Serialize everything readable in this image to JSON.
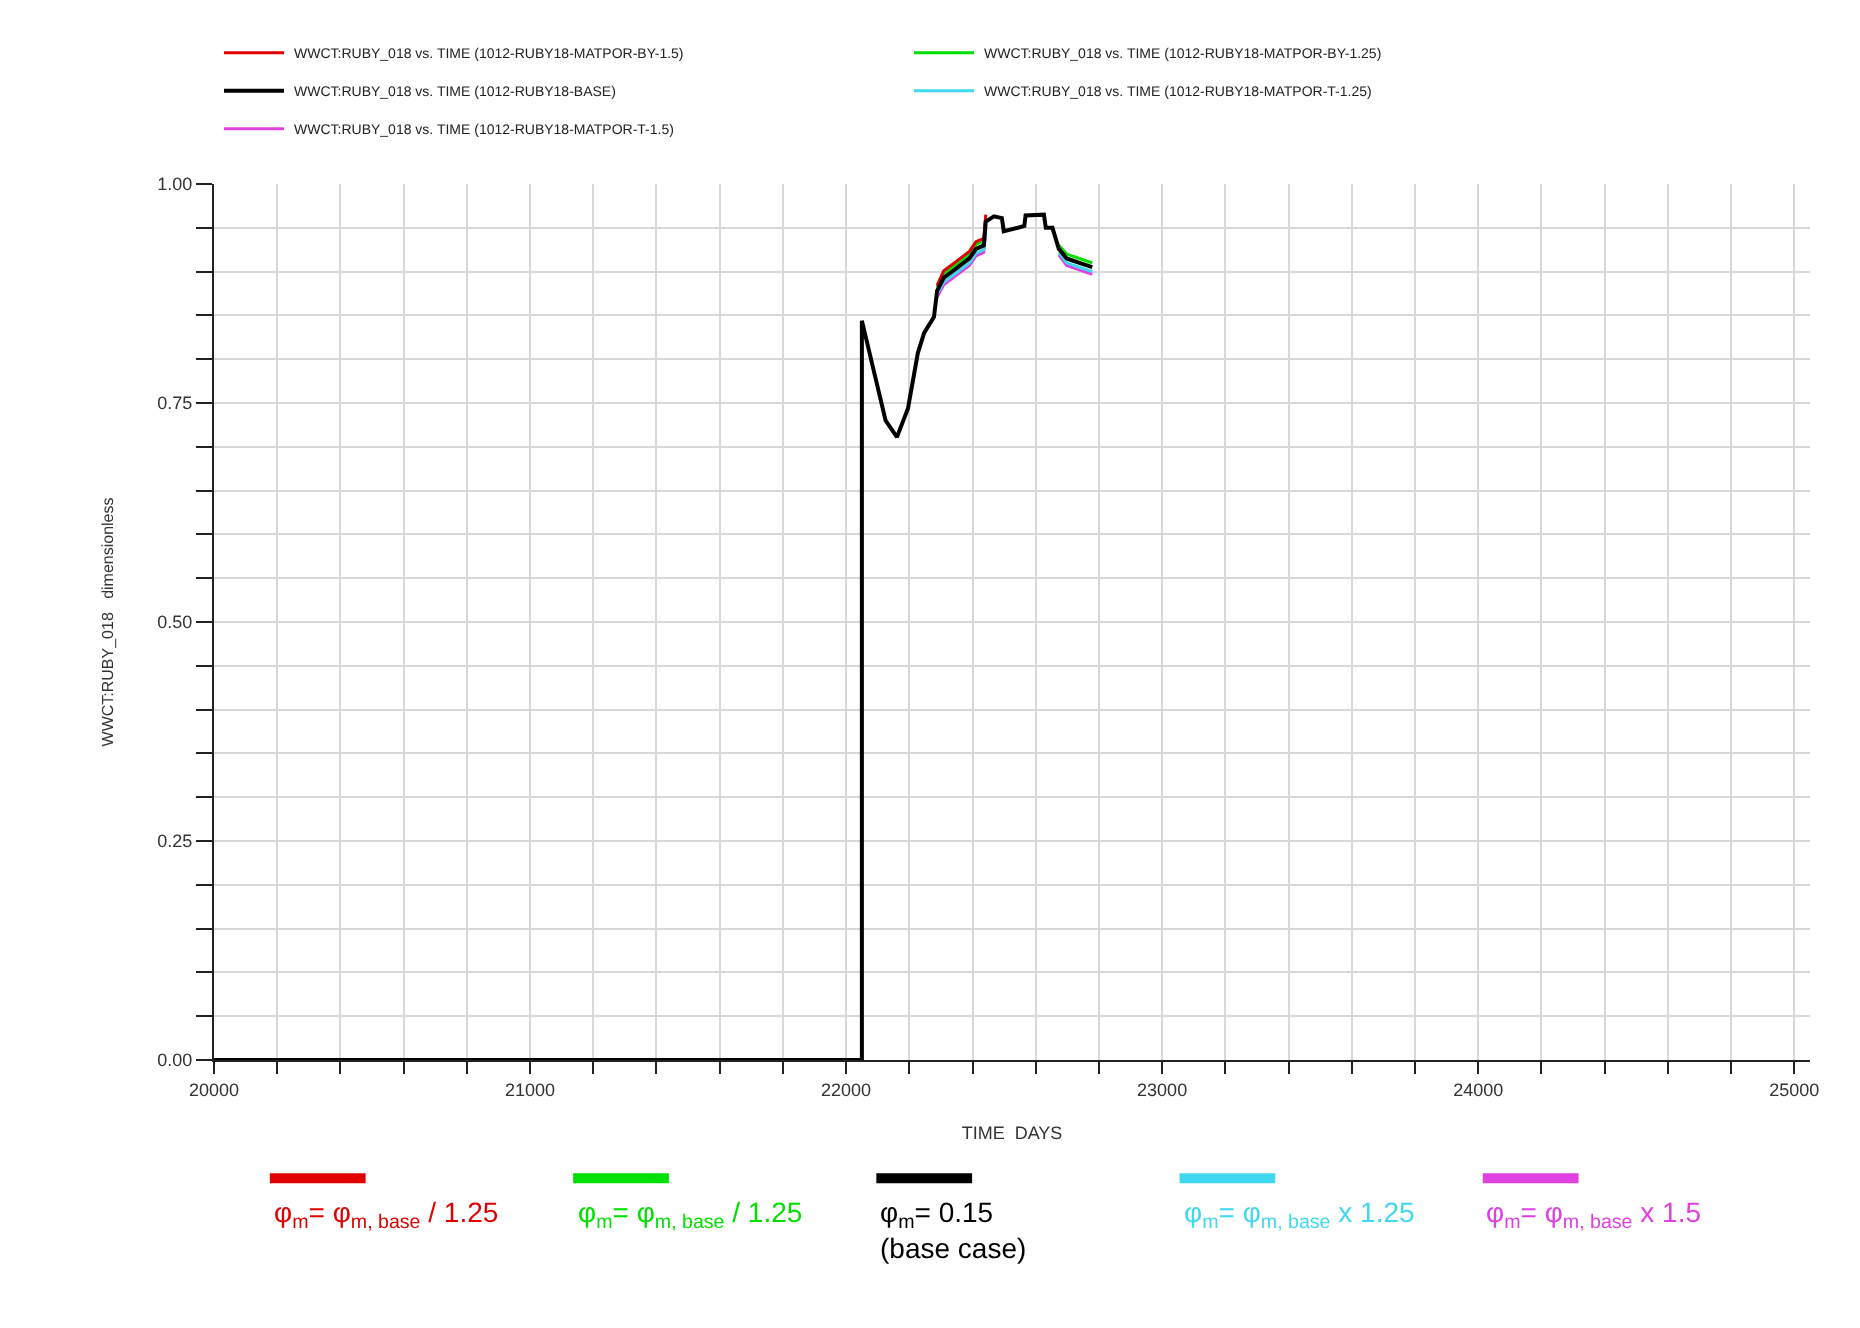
{
  "chart_data": {
    "type": "line",
    "xlabel": "TIME  DAYS",
    "ylabel": "WWCT:RUBY_018   dimensionless",
    "xlim": [
      20000,
      25050
    ],
    "xticks": [
      20000,
      {
        "value": 20200,
        "label": null
      },
      {
        "value": 20400,
        "label": null
      },
      {
        "value": 20600,
        "label": null
      },
      {
        "value": 20800,
        "label": null
      },
      21000,
      {
        "value": 21200,
        "label": null
      },
      {
        "value": 21400,
        "label": null
      },
      {
        "value": 21600,
        "label": null
      },
      {
        "value": 21800,
        "label": null
      },
      22000,
      {
        "value": 22200,
        "label": null
      },
      {
        "value": 22400,
        "label": null
      },
      {
        "value": 22600,
        "label": null
      },
      {
        "value": 22800,
        "label": null
      },
      23000,
      {
        "value": 23200,
        "label": null
      },
      {
        "value": 23400,
        "label": null
      },
      {
        "value": 23600,
        "label": null
      },
      {
        "value": 23800,
        "label": null
      },
      24000,
      {
        "value": 24200,
        "label": null
      },
      {
        "value": 24400,
        "label": null
      },
      {
        "value": 24600,
        "label": null
      },
      {
        "value": 24800,
        "label": null
      },
      25000
    ],
    "ylim": [
      0,
      1
    ],
    "yticks": [
      {
        "value": 0,
        "label": "0.00"
      },
      {
        "value": 0.05,
        "label": null
      },
      {
        "value": 0.1,
        "label": null
      },
      {
        "value": 0.15,
        "label": null
      },
      {
        "value": 0.2,
        "label": null
      },
      {
        "value": 0.25,
        "label": "0.25"
      },
      {
        "value": 0.3,
        "label": null
      },
      {
        "value": 0.35,
        "label": null
      },
      {
        "value": 0.4,
        "label": null
      },
      {
        "value": 0.45,
        "label": null
      },
      {
        "value": 0.5,
        "label": "0.50"
      },
      {
        "value": 0.55,
        "label": null
      },
      {
        "value": 0.6,
        "label": null
      },
      {
        "value": 0.65,
        "label": null
      },
      {
        "value": 0.7,
        "label": null
      },
      {
        "value": 0.75,
        "label": "0.75"
      },
      {
        "value": 0.8,
        "label": null
      },
      {
        "value": 0.85,
        "label": null
      },
      {
        "value": 0.9,
        "label": null
      },
      {
        "value": 0.95,
        "label": null
      },
      {
        "value": 1,
        "label": "1.00"
      }
    ],
    "grid": true,
    "legend": "top",
    "marker": "none",
    "line_style": "solid",
    "x": [
      20000,
      22050,
      22050,
      22125,
      22161,
      22196,
      22227,
      22247,
      22278,
      22288,
      22309,
      22350,
      22390,
      22411,
      22436,
      22442,
      22468,
      22493,
      22499,
      22544,
      22564,
      22568,
      22626,
      22632,
      22653,
      22673,
      22698,
      22738,
      22779
    ],
    "series": [
      {
        "name": "WWCT:RUBY_018 vs. TIME (1012-RUBY18-MATPOR-BY-1.5)",
        "color": "#e00000",
        "values": [
          null,
          null,
          null,
          null,
          null,
          null,
          null,
          null,
          null,
          0.884,
          0.901,
          0.912,
          0.923,
          0.934,
          0.938,
          0.965,
          null,
          null,
          null,
          null,
          null,
          null,
          null,
          null,
          null,
          null,
          null,
          null,
          null
        ]
      },
      {
        "name": "WWCT:RUBY_018 vs. TIME (1012-RUBY18-MATPOR-BY-1.25)",
        "color": "#00e000",
        "values": [
          null,
          null,
          null,
          null,
          null,
          null,
          null,
          null,
          null,
          0.882,
          0.898,
          0.909,
          0.92,
          0.931,
          0.935,
          0.962,
          null,
          null,
          null,
          null,
          null,
          null,
          null,
          null,
          null,
          0.93,
          0.92,
          0.915,
          0.91
        ]
      },
      {
        "name": "WWCT:RUBY_018 vs. TIME (1012-RUBY18-BASE)",
        "color": "#000000",
        "values": [
          0,
          0,
          0.844,
          0.73,
          0.711,
          0.744,
          0.807,
          0.83,
          0.848,
          0.878,
          0.893,
          0.904,
          0.915,
          0.926,
          0.93,
          0.957,
          0.963,
          0.961,
          0.946,
          0.95,
          0.952,
          0.964,
          0.965,
          0.95,
          0.95,
          0.926,
          0.915,
          0.91,
          0.905
        ]
      },
      {
        "name": "WWCT:RUBY_018 vs. TIME (1012-RUBY18-MATPOR-T-1.25)",
        "color": "#40d8f0",
        "values": [
          null,
          null,
          null,
          null,
          null,
          null,
          null,
          null,
          null,
          0.874,
          0.888,
          0.899,
          0.91,
          0.921,
          0.925,
          0.952,
          null,
          null,
          null,
          null,
          null,
          null,
          null,
          null,
          null,
          0.922,
          0.91,
          0.905,
          0.9
        ]
      },
      {
        "name": "WWCT:RUBY_018 vs. TIME (1012-RUBY18-MATPOR-T-1.5)",
        "color": "#e040e0",
        "values": [
          null,
          null,
          null,
          null,
          null,
          null,
          null,
          null,
          null,
          0.871,
          0.885,
          0.896,
          0.907,
          0.918,
          0.922,
          0.949,
          null,
          null,
          null,
          null,
          null,
          null,
          null,
          null,
          null,
          0.919,
          0.907,
          0.902,
          0.897
        ]
      }
    ],
    "annotations": [
      "φ$_{m}$= φ$_{m, base}$ / 1.25",
      "φ$_{m}$= φ$_{m, base}$ / 1.25",
      "φ$_{m}$= 0.15\n(base case)",
      "φ$_{m}$= φ$_{m, base}$ x 1.25",
      "φ$_{m}$= φ$_{m, base}$ x 1.5"
    ]
  }
}
